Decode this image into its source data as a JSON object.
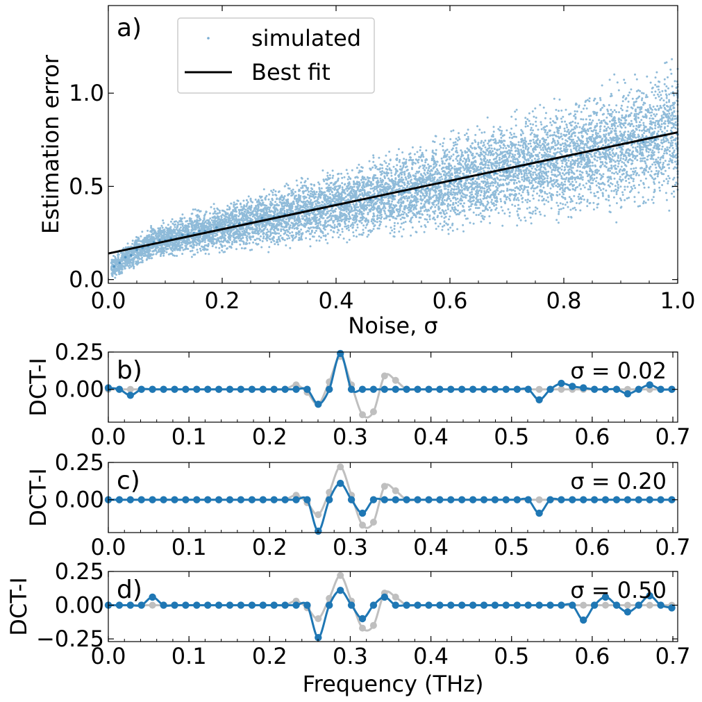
{
  "chart_data": [
    {
      "type": "scatter",
      "panel_label": "a)",
      "xlabel": "Noise, σ",
      "ylabel": "Estimation error",
      "xlim": [
        0.0,
        1.0
      ],
      "ylim": [
        -0.02,
        1.47
      ],
      "xticks": [
        0.0,
        0.2,
        0.4,
        0.6,
        0.8,
        1.0
      ],
      "xtick_labels": [
        "0.0",
        "0.2",
        "0.4",
        "0.6",
        "0.8",
        "1.0"
      ],
      "yticks": [
        0.0,
        0.5,
        1.0
      ],
      "ytick_labels": [
        "0.0",
        "0.5",
        "1.0"
      ],
      "series": [
        {
          "name": "simulated",
          "kind": "scatter",
          "color": "#1f77b4",
          "x": [
            0.01,
            0.02,
            0.03,
            0.04,
            0.05,
            0.06,
            0.07,
            0.08,
            0.09,
            0.1,
            0.11,
            0.12,
            0.13,
            0.14,
            0.15,
            0.16,
            0.17,
            0.18,
            0.19,
            0.2,
            0.21,
            0.22,
            0.23,
            0.24,
            0.25,
            0.26,
            0.27,
            0.28,
            0.29,
            0.3,
            0.31,
            0.32,
            0.33,
            0.34,
            0.35,
            0.36,
            0.37,
            0.38,
            0.39,
            0.4,
            0.41,
            0.42,
            0.43,
            0.44,
            0.45,
            0.46,
            0.47,
            0.48,
            0.49,
            0.5,
            0.51,
            0.52,
            0.53,
            0.54,
            0.55,
            0.56,
            0.57,
            0.58,
            0.59,
            0.6,
            0.61,
            0.62,
            0.63,
            0.64,
            0.65,
            0.66,
            0.67,
            0.68,
            0.69,
            0.7,
            0.71,
            0.72,
            0.73,
            0.74,
            0.75,
            0.76,
            0.77,
            0.78,
            0.79,
            0.8,
            0.81,
            0.82,
            0.83,
            0.84,
            0.85,
            0.86,
            0.87,
            0.88,
            0.89,
            0.9,
            0.91,
            0.92,
            0.93,
            0.94,
            0.95,
            0.96,
            0.97,
            0.98,
            0.99,
            1.0
          ],
          "y": [
            0.07,
            0.09,
            0.12,
            0.13,
            0.16,
            0.17,
            0.18,
            0.2,
            0.21,
            0.21,
            0.22,
            0.22,
            0.24,
            0.24,
            0.25,
            0.26,
            0.26,
            0.26,
            0.28,
            0.27,
            0.29,
            0.29,
            0.3,
            0.3,
            0.31,
            0.31,
            0.33,
            0.32,
            0.34,
            0.34,
            0.35,
            0.35,
            0.36,
            0.37,
            0.37,
            0.38,
            0.38,
            0.38,
            0.4,
            0.4,
            0.4,
            0.41,
            0.42,
            0.42,
            0.43,
            0.43,
            0.44,
            0.44,
            0.46,
            0.45,
            0.47,
            0.47,
            0.48,
            0.48,
            0.5,
            0.49,
            0.51,
            0.51,
            0.52,
            0.52,
            0.53,
            0.53,
            0.55,
            0.54,
            0.56,
            0.56,
            0.57,
            0.57,
            0.59,
            0.58,
            0.6,
            0.6,
            0.61,
            0.61,
            0.63,
            0.62,
            0.64,
            0.64,
            0.65,
            0.65,
            0.66,
            0.67,
            0.67,
            0.68,
            0.69,
            0.69,
            0.7,
            0.7,
            0.72,
            0.71,
            0.73,
            0.73,
            0.74,
            0.74,
            0.76,
            0.75,
            0.77,
            0.77,
            0.79,
            0.78
          ]
        },
        {
          "name": "Best fit",
          "kind": "line",
          "color": "#000000",
          "x": [
            0.0,
            1.0
          ],
          "y": [
            0.14,
            0.79
          ]
        }
      ],
      "legend": "top-left"
    },
    {
      "type": "line",
      "panel_label": "b)",
      "annotation": "σ = 0.02",
      "ylabel": "DCT-I",
      "xlim": [
        0.0,
        0.706
      ],
      "ylim": [
        -0.22,
        0.25
      ],
      "xticks": [
        0.0,
        0.1,
        0.2,
        0.3,
        0.4,
        0.5,
        0.6,
        0.7
      ],
      "xtick_labels": [
        "0.0",
        "0.1",
        "0.2",
        "0.3",
        "0.4",
        "0.5",
        "0.6",
        "0.7"
      ],
      "yticks": [
        0.0,
        0.25
      ],
      "ytick_labels": [
        "0.00",
        "0.25"
      ],
      "series": [
        {
          "kind": "reference",
          "color": "#bfbfbf",
          "x": [
            0.0,
            0.0137,
            0.0274,
            0.0411,
            0.0548,
            0.0685,
            0.0822,
            0.0959,
            0.1096,
            0.1233,
            0.137,
            0.1507,
            0.1644,
            0.1781,
            0.1918,
            0.2055,
            0.2192,
            0.2329,
            0.2466,
            0.2603,
            0.274,
            0.2877,
            0.3014,
            0.3151,
            0.3288,
            0.3425,
            0.3562,
            0.3699,
            0.3836,
            0.3973,
            0.411,
            0.4247,
            0.4384,
            0.4521,
            0.4658,
            0.4795,
            0.4932,
            0.5069,
            0.5206,
            0.5343,
            0.548,
            0.5617,
            0.5754,
            0.5891,
            0.6028,
            0.6165,
            0.6302,
            0.6439,
            0.6576,
            0.6713,
            0.685,
            0.6987
          ],
          "y": [
            0.0,
            0.0,
            0.0,
            0.0,
            0.0,
            0.0,
            0.0,
            0.0,
            0.0,
            0.0,
            0.0,
            0.0,
            0.0,
            0.0,
            0.0,
            0.0,
            0.0,
            0.03,
            -0.02,
            -0.1,
            0.05,
            0.22,
            0.03,
            -0.17,
            -0.15,
            0.09,
            0.06,
            0.0,
            0.0,
            0.0,
            0.0,
            0.0,
            0.0,
            0.0,
            0.0,
            0.0,
            0.0,
            0.0,
            0.0,
            0.0,
            0.0,
            0.0,
            0.0,
            0.0,
            0.0,
            0.0,
            0.0,
            0.0,
            0.0,
            0.0,
            0.0,
            0.0
          ]
        },
        {
          "kind": "estimate",
          "color": "#1f77b4",
          "x": [
            0.0,
            0.0137,
            0.0274,
            0.0411,
            0.0548,
            0.0685,
            0.0822,
            0.0959,
            0.1096,
            0.1233,
            0.137,
            0.1507,
            0.1644,
            0.1781,
            0.1918,
            0.2055,
            0.2192,
            0.2329,
            0.2466,
            0.2603,
            0.274,
            0.2877,
            0.3014,
            0.3151,
            0.3288,
            0.3425,
            0.3562,
            0.3699,
            0.3836,
            0.3973,
            0.411,
            0.4247,
            0.4384,
            0.4521,
            0.4658,
            0.4795,
            0.4932,
            0.5069,
            0.5206,
            0.5343,
            0.548,
            0.5617,
            0.5754,
            0.5891,
            0.6028,
            0.6165,
            0.6302,
            0.6439,
            0.6576,
            0.6713,
            0.685,
            0.6987
          ],
          "y": [
            0.01,
            0.0,
            -0.04,
            0.0,
            0.0,
            0.0,
            0.0,
            0.0,
            0.0,
            0.0,
            0.0,
            0.0,
            0.0,
            0.0,
            0.0,
            0.0,
            0.0,
            0.0,
            0.0,
            -0.1,
            0.0,
            0.24,
            0.0,
            0.0,
            0.0,
            0.0,
            0.0,
            0.0,
            0.0,
            0.0,
            0.0,
            0.0,
            0.0,
            0.0,
            0.0,
            0.0,
            0.0,
            0.0,
            0.0,
            -0.07,
            0.0,
            0.04,
            0.02,
            0.01,
            0.0,
            0.0,
            0.0,
            -0.03,
            0.0,
            0.03,
            0.0,
            0.0
          ]
        }
      ]
    },
    {
      "type": "line",
      "panel_label": "c)",
      "annotation": "σ = 0.20",
      "ylabel": "DCT-I",
      "xlim": [
        0.0,
        0.706
      ],
      "ylim": [
        -0.22,
        0.25
      ],
      "xticks": [
        0.0,
        0.1,
        0.2,
        0.3,
        0.4,
        0.5,
        0.6,
        0.7
      ],
      "xtick_labels": [
        "0.0",
        "0.1",
        "0.2",
        "0.3",
        "0.4",
        "0.5",
        "0.6",
        "0.7"
      ],
      "yticks": [
        0.0,
        0.25
      ],
      "ytick_labels": [
        "0.00",
        "0.25"
      ],
      "series": [
        {
          "kind": "reference",
          "color": "#bfbfbf",
          "x": [
            0.0,
            0.0137,
            0.0274,
            0.0411,
            0.0548,
            0.0685,
            0.0822,
            0.0959,
            0.1096,
            0.1233,
            0.137,
            0.1507,
            0.1644,
            0.1781,
            0.1918,
            0.2055,
            0.2192,
            0.2329,
            0.2466,
            0.2603,
            0.274,
            0.2877,
            0.3014,
            0.3151,
            0.3288,
            0.3425,
            0.3562,
            0.3699,
            0.3836,
            0.3973,
            0.411,
            0.4247,
            0.4384,
            0.4521,
            0.4658,
            0.4795,
            0.4932,
            0.5069,
            0.5206,
            0.5343,
            0.548,
            0.5617,
            0.5754,
            0.5891,
            0.6028,
            0.6165,
            0.6302,
            0.6439,
            0.6576,
            0.6713,
            0.685,
            0.6987
          ],
          "y": [
            0.0,
            0.0,
            0.0,
            0.0,
            0.0,
            0.0,
            0.0,
            0.0,
            0.0,
            0.0,
            0.0,
            0.0,
            0.0,
            0.0,
            0.0,
            0.0,
            0.0,
            0.03,
            -0.02,
            -0.1,
            0.05,
            0.22,
            0.03,
            -0.17,
            -0.15,
            0.09,
            0.06,
            0.0,
            0.0,
            0.0,
            0.0,
            0.0,
            0.0,
            0.0,
            0.0,
            0.0,
            0.0,
            0.0,
            0.0,
            0.0,
            0.0,
            0.0,
            0.0,
            0.0,
            0.0,
            0.0,
            0.0,
            0.0,
            0.0,
            0.0,
            0.0,
            0.0
          ]
        },
        {
          "kind": "estimate",
          "color": "#1f77b4",
          "x": [
            0.0,
            0.0137,
            0.0274,
            0.0411,
            0.0548,
            0.0685,
            0.0822,
            0.0959,
            0.1096,
            0.1233,
            0.137,
            0.1507,
            0.1644,
            0.1781,
            0.1918,
            0.2055,
            0.2192,
            0.2329,
            0.2466,
            0.2603,
            0.274,
            0.2877,
            0.3014,
            0.3151,
            0.3288,
            0.3425,
            0.3562,
            0.3699,
            0.3836,
            0.3973,
            0.411,
            0.4247,
            0.4384,
            0.4521,
            0.4658,
            0.4795,
            0.4932,
            0.5069,
            0.5206,
            0.5343,
            0.548,
            0.5617,
            0.5754,
            0.5891,
            0.6028,
            0.6165,
            0.6302,
            0.6439,
            0.6576,
            0.6713,
            0.685,
            0.6987
          ],
          "y": [
            0.0,
            0.0,
            0.0,
            0.0,
            0.0,
            0.0,
            0.0,
            0.0,
            0.0,
            0.0,
            0.0,
            0.0,
            0.0,
            0.0,
            0.0,
            0.0,
            0.0,
            0.0,
            0.0,
            -0.21,
            0.0,
            0.11,
            0.0,
            -0.09,
            0.0,
            0.0,
            0.0,
            0.0,
            0.0,
            0.0,
            0.0,
            0.0,
            0.0,
            0.0,
            0.0,
            0.0,
            0.0,
            0.0,
            0.0,
            -0.09,
            0.0,
            0.0,
            0.0,
            0.0,
            0.0,
            0.0,
            0.0,
            0.0,
            0.0,
            0.0,
            0.0,
            0.0
          ]
        }
      ]
    },
    {
      "type": "line",
      "panel_label": "d)",
      "annotation": "σ = 0.50",
      "ylabel": "DCT-I",
      "xlabel": "Frequency (THz)",
      "xlim": [
        0.0,
        0.706
      ],
      "ylim": [
        -0.27,
        0.25
      ],
      "xticks": [
        0.0,
        0.1,
        0.2,
        0.3,
        0.4,
        0.5,
        0.6,
        0.7
      ],
      "xtick_labels": [
        "0.0",
        "0.1",
        "0.2",
        "0.3",
        "0.4",
        "0.5",
        "0.6",
        "0.7"
      ],
      "yticks": [
        -0.25,
        0.0,
        0.25
      ],
      "ytick_labels": [
        "−0.25",
        "0.00",
        "0.25"
      ],
      "series": [
        {
          "kind": "reference",
          "color": "#bfbfbf",
          "x": [
            0.0,
            0.0137,
            0.0274,
            0.0411,
            0.0548,
            0.0685,
            0.0822,
            0.0959,
            0.1096,
            0.1233,
            0.137,
            0.1507,
            0.1644,
            0.1781,
            0.1918,
            0.2055,
            0.2192,
            0.2329,
            0.2466,
            0.2603,
            0.274,
            0.2877,
            0.3014,
            0.3151,
            0.3288,
            0.3425,
            0.3562,
            0.3699,
            0.3836,
            0.3973,
            0.411,
            0.4247,
            0.4384,
            0.4521,
            0.4658,
            0.4795,
            0.4932,
            0.5069,
            0.5206,
            0.5343,
            0.548,
            0.5617,
            0.5754,
            0.5891,
            0.6028,
            0.6165,
            0.6302,
            0.6439,
            0.6576,
            0.6713,
            0.685,
            0.6987
          ],
          "y": [
            0.0,
            0.0,
            0.0,
            0.0,
            0.0,
            0.0,
            0.0,
            0.0,
            0.0,
            0.0,
            0.0,
            0.0,
            0.0,
            0.0,
            0.0,
            0.0,
            0.0,
            0.03,
            -0.02,
            -0.1,
            0.05,
            0.22,
            0.03,
            -0.17,
            -0.15,
            0.09,
            0.06,
            0.0,
            0.0,
            0.0,
            0.0,
            0.0,
            0.0,
            0.0,
            0.0,
            0.0,
            0.0,
            0.0,
            0.0,
            0.0,
            0.0,
            0.0,
            0.0,
            0.0,
            0.0,
            0.0,
            0.0,
            0.0,
            0.0,
            0.0,
            0.0,
            0.0
          ]
        },
        {
          "kind": "estimate",
          "color": "#1f77b4",
          "x": [
            0.0,
            0.0137,
            0.0274,
            0.0411,
            0.0548,
            0.0685,
            0.0822,
            0.0959,
            0.1096,
            0.1233,
            0.137,
            0.1507,
            0.1644,
            0.1781,
            0.1918,
            0.2055,
            0.2192,
            0.2329,
            0.2466,
            0.2603,
            0.274,
            0.2877,
            0.3014,
            0.3151,
            0.3288,
            0.3425,
            0.3562,
            0.3699,
            0.3836,
            0.3973,
            0.411,
            0.4247,
            0.4384,
            0.4521,
            0.4658,
            0.4795,
            0.4932,
            0.5069,
            0.5206,
            0.5343,
            0.548,
            0.5617,
            0.5754,
            0.5891,
            0.6028,
            0.6165,
            0.6302,
            0.6439,
            0.6576,
            0.6713,
            0.685,
            0.6987
          ],
          "y": [
            0.0,
            0.0,
            0.0,
            0.0,
            0.06,
            0.0,
            0.0,
            0.0,
            0.0,
            0.0,
            0.0,
            0.0,
            0.0,
            0.0,
            0.0,
            0.0,
            0.0,
            0.0,
            0.0,
            -0.24,
            0.0,
            0.11,
            0.0,
            -0.1,
            0.0,
            0.06,
            0.0,
            0.0,
            0.0,
            0.0,
            0.0,
            0.0,
            0.0,
            0.0,
            0.0,
            0.0,
            0.0,
            0.0,
            0.0,
            0.0,
            0.0,
            0.0,
            0.0,
            -0.11,
            0.0,
            0.06,
            0.0,
            -0.05,
            0.0,
            0.07,
            0.0,
            -0.02
          ]
        }
      ]
    }
  ]
}
